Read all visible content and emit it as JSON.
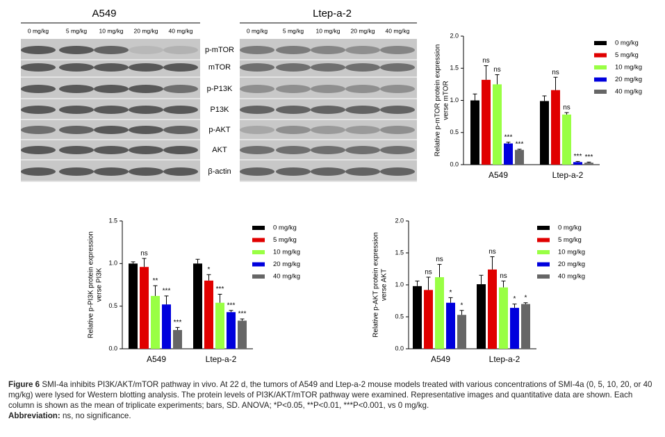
{
  "blots": {
    "panels": [
      {
        "title": "A549",
        "lanes": [
          "0 mg/kg",
          "5 mg/kg",
          "10 mg/kg",
          "20 mg/kg",
          "40 mg/kg"
        ]
      },
      {
        "title": "Ltep-a-2",
        "lanes": [
          "0 mg/kg",
          "5 mg/kg",
          "10 mg/kg",
          "20 mg/kg",
          "40 mg/kg"
        ]
      }
    ],
    "proteins": [
      "p-mTOR",
      "mTOR",
      "p-P13K",
      "P13K",
      "p-AKT",
      "AKT",
      "β-actin"
    ]
  },
  "chart_data": [
    {
      "type": "bar",
      "y_label": [
        "Relative p-mTOR protein expression",
        "verse mTOR"
      ],
      "categories": [
        "A549",
        "Ltep-a-2"
      ],
      "ylim": [
        0,
        2
      ],
      "yticks": [
        {
          "value": 0,
          "label": "0.0"
        },
        0.5,
        {
          "value": 1,
          "label": "1.0"
        },
        1.5,
        {
          "value": 2,
          "label": "2.0"
        }
      ],
      "series": [
        {
          "name": "0 mg/kg",
          "color": "#000000",
          "values": [
            1.0,
            0.99
          ],
          "errors": [
            0.1,
            0.08
          ],
          "annotations": [
            null,
            null
          ]
        },
        {
          "name": "5 mg/kg",
          "color": "#e00000",
          "values": [
            1.32,
            1.16
          ],
          "errors": [
            0.22,
            0.2
          ],
          "annotations": [
            "ns",
            "ns"
          ]
        },
        {
          "name": "10 mg/kg",
          "color": "#99ff44",
          "values": [
            1.25,
            0.78
          ],
          "errors": [
            0.15,
            0.03
          ],
          "annotations": [
            "ns",
            "ns"
          ]
        },
        {
          "name": "20 mg/kg",
          "color": "#0000dd",
          "values": [
            0.33,
            0.04
          ],
          "errors": [
            0.02,
            0.01
          ],
          "annotations": [
            "***",
            "***"
          ]
        },
        {
          "name": "40 mg/kg",
          "color": "#666666",
          "values": [
            0.23,
            0.03
          ],
          "errors": [
            0.01,
            0.01
          ],
          "annotations": [
            "***",
            "***"
          ]
        }
      ]
    },
    {
      "type": "bar",
      "y_label": [
        "Relative p-PI3K protein expression",
        "verse PI3K"
      ],
      "categories": [
        "A549",
        "Ltep-a-2"
      ],
      "ylim": [
        0,
        1.5
      ],
      "yticks": [
        {
          "value": 0,
          "label": "0.0"
        },
        0.5,
        {
          "value": 1,
          "label": "1.0"
        },
        1.5
      ],
      "series": [
        {
          "name": "0 mg/kg",
          "color": "#000000",
          "values": [
            1.0,
            1.0
          ],
          "errors": [
            0.02,
            0.05
          ],
          "annotations": [
            null,
            null
          ]
        },
        {
          "name": "5 mg/kg",
          "color": "#e00000",
          "values": [
            0.96,
            0.8
          ],
          "errors": [
            0.1,
            0.07
          ],
          "annotations": [
            "ns",
            "*"
          ]
        },
        {
          "name": "10 mg/kg",
          "color": "#99ff44",
          "values": [
            0.62,
            0.54
          ],
          "errors": [
            0.12,
            0.1
          ],
          "annotations": [
            "**",
            "***"
          ]
        },
        {
          "name": "20 mg/kg",
          "color": "#0000dd",
          "values": [
            0.52,
            0.43
          ],
          "errors": [
            0.1,
            0.02
          ],
          "annotations": [
            "***",
            "***"
          ]
        },
        {
          "name": "40 mg/kg",
          "color": "#666666",
          "values": [
            0.22,
            0.33
          ],
          "errors": [
            0.03,
            0.02
          ],
          "annotations": [
            "***",
            "***"
          ]
        }
      ]
    },
    {
      "type": "bar",
      "y_label": [
        "Relative p-AKT protein expression",
        "verse AKT"
      ],
      "categories": [
        "A549",
        "Ltep-a-2"
      ],
      "ylim": [
        0,
        2
      ],
      "yticks": [
        {
          "value": 0,
          "label": "0.0"
        },
        0.5,
        {
          "value": 1,
          "label": "1.0"
        },
        1.5,
        {
          "value": 2,
          "label": "2.0"
        }
      ],
      "series": [
        {
          "name": "0 mg/kg",
          "color": "#000000",
          "values": [
            0.98,
            1.01
          ],
          "errors": [
            0.08,
            0.14
          ],
          "annotations": [
            null,
            null
          ]
        },
        {
          "name": "5 mg/kg",
          "color": "#e00000",
          "values": [
            0.92,
            1.24
          ],
          "errors": [
            0.2,
            0.2
          ],
          "annotations": [
            "ns",
            "ns"
          ]
        },
        {
          "name": "10 mg/kg",
          "color": "#99ff44",
          "values": [
            1.12,
            0.96
          ],
          "errors": [
            0.2,
            0.1
          ],
          "annotations": [
            "ns",
            "ns"
          ]
        },
        {
          "name": "20 mg/kg",
          "color": "#0000dd",
          "values": [
            0.72,
            0.64
          ],
          "errors": [
            0.08,
            0.06
          ],
          "annotations": [
            "*",
            "*"
          ]
        },
        {
          "name": "40 mg/kg",
          "color": "#666666",
          "values": [
            0.53,
            0.7
          ],
          "errors": [
            0.07,
            0.02
          ],
          "annotations": [
            "*",
            "*"
          ]
        }
      ]
    }
  ],
  "caption": {
    "label": "Figure 6",
    "text": "SMI-4a inhibits PI3K/AKT/mTOR pathway in vivo. At 22 d, the tumors of A549 and Ltep-a-2 mouse models treated with various concentrations of SMI-4a (0, 5, 10, 20, or 40 mg/kg) were lysed for Western blotting analysis. The protein levels of PI3K/AKT/mTOR pathway were examined. Representative images and quantitative data are shown. Each column is shown as the mean of triplicate experiments; bars, SD. ANOVA; *P<0.05, **P<0.01, ***P<0.001, vs 0 mg/kg.",
    "abbreviation_label": "Abbreviation:",
    "abbreviation_text": "ns, no significance."
  }
}
